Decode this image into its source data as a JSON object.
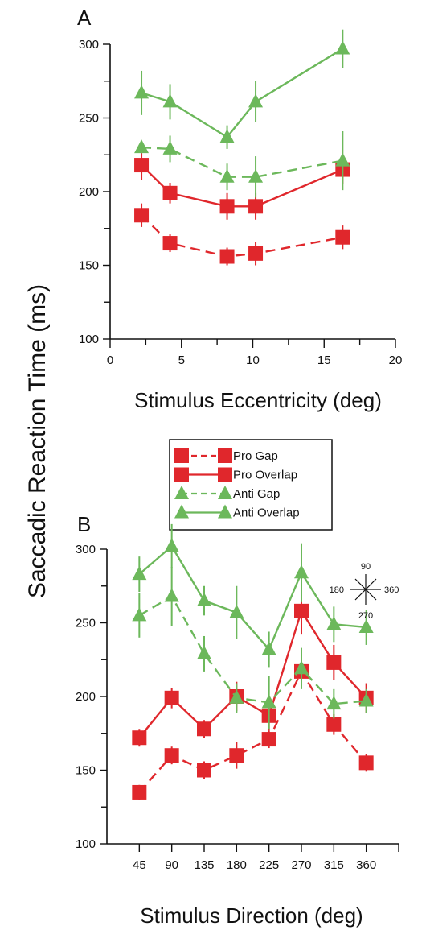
{
  "figure": {
    "ylabel": "Saccadic Reaction Time (ms)",
    "colors": {
      "pro": "#e0272c",
      "anti": "#6cb85b",
      "axis": "#111111"
    }
  },
  "legend": [
    {
      "label": "Pro Gap",
      "marker": "square",
      "color": "#e0272c",
      "dash": true
    },
    {
      "label": "Pro Overlap",
      "marker": "square",
      "color": "#e0272c",
      "dash": false
    },
    {
      "label": "Anti Gap",
      "marker": "triangle",
      "color": "#6cb85b",
      "dash": true
    },
    {
      "label": "Anti Overlap",
      "marker": "triangle",
      "color": "#6cb85b",
      "dash": false
    }
  ],
  "compass": {
    "top": "90",
    "left": "180",
    "right": "360",
    "bottom": "270"
  },
  "chart_data": [
    {
      "panel": "A",
      "type": "line",
      "xlabel": "Stimulus Eccentricity (deg)",
      "ylabel": "Saccadic Reaction Time (ms)",
      "xlim": [
        0,
        20
      ],
      "ylim": [
        100,
        300
      ],
      "xticks": [
        0,
        5,
        10,
        15,
        20
      ],
      "yticks": [
        100,
        150,
        200,
        250,
        300
      ],
      "x": [
        2.2,
        4.2,
        8.2,
        10.2,
        16.3
      ],
      "series": [
        {
          "name": "Pro Gap",
          "marker": "square",
          "color": "#e0272c",
          "dash": true,
          "values": [
            184,
            165,
            156,
            158,
            169
          ],
          "err": [
            8,
            6,
            6,
            8,
            8
          ]
        },
        {
          "name": "Pro Overlap",
          "marker": "square",
          "color": "#e0272c",
          "dash": false,
          "values": [
            218,
            199,
            190,
            190,
            215
          ],
          "err": [
            10,
            7,
            9,
            9,
            10
          ]
        },
        {
          "name": "Anti Gap",
          "marker": "triangle",
          "color": "#6cb85b",
          "dash": true,
          "values": [
            230,
            229,
            210,
            210,
            221
          ],
          "err": [
            4,
            9,
            9,
            14,
            20
          ]
        },
        {
          "name": "Anti Overlap",
          "marker": "triangle",
          "color": "#6cb85b",
          "dash": false,
          "values": [
            267,
            261,
            237,
            261,
            297
          ],
          "err": [
            15,
            12,
            8,
            14,
            13
          ]
        }
      ]
    },
    {
      "panel": "B",
      "type": "line",
      "xlabel": "Stimulus Direction (deg)",
      "ylabel": "Saccadic Reaction Time (ms)",
      "xlim": [
        0,
        405
      ],
      "ylim": [
        100,
        300
      ],
      "xticks": [
        45,
        90,
        135,
        180,
        225,
        270,
        315,
        360
      ],
      "yticks": [
        100,
        150,
        200,
        250,
        300
      ],
      "x": [
        45,
        90,
        135,
        180,
        225,
        270,
        315,
        360
      ],
      "series": [
        {
          "name": "Pro Gap",
          "marker": "square",
          "color": "#e0272c",
          "dash": true,
          "values": [
            135,
            160,
            150,
            160,
            171,
            217,
            181,
            155
          ],
          "err": [
            5,
            6,
            6,
            9,
            6,
            10,
            7,
            6
          ]
        },
        {
          "name": "Pro Overlap",
          "marker": "square",
          "color": "#e0272c",
          "dash": false,
          "values": [
            172,
            199,
            178,
            200,
            187,
            258,
            223,
            199
          ],
          "err": [
            6,
            7,
            6,
            10,
            10,
            16,
            12,
            10
          ]
        },
        {
          "name": "Anti Gap",
          "marker": "triangle",
          "color": "#6cb85b",
          "dash": true,
          "values": [
            255,
            268,
            229,
            199,
            196,
            219,
            195,
            197
          ],
          "err": [
            15,
            20,
            12,
            10,
            18,
            14,
            10,
            8
          ]
        },
        {
          "name": "Anti Overlap",
          "marker": "triangle",
          "color": "#6cb85b",
          "dash": false,
          "values": [
            283,
            302,
            265,
            257,
            232,
            284,
            249,
            247
          ],
          "err": [
            12,
            15,
            10,
            18,
            12,
            20,
            12,
            12
          ]
        }
      ]
    }
  ]
}
